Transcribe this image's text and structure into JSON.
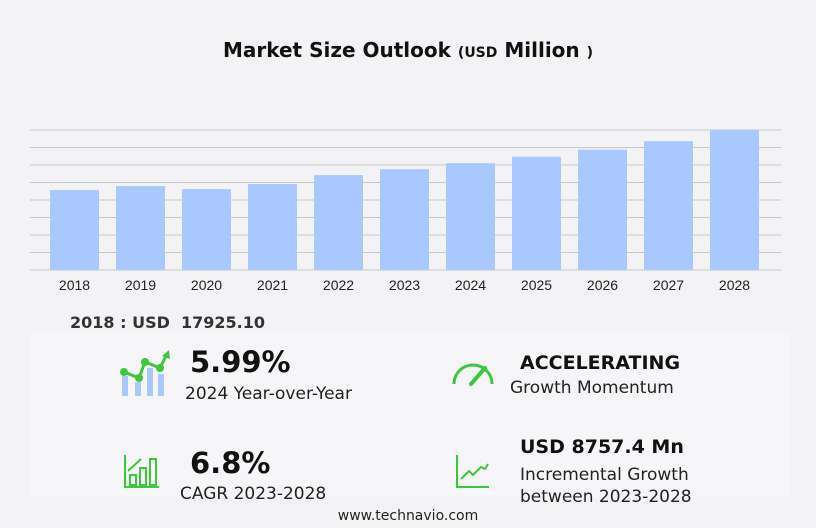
{
  "title": {
    "main": "Market Size Outlook",
    "open": "(",
    "unit": "USD",
    "unit2": "Million",
    "close": ")"
  },
  "chart_data": {
    "type": "bar",
    "categories": [
      "2018",
      "2019",
      "2020",
      "2021",
      "2022",
      "2023",
      "2024",
      "2025",
      "2026",
      "2027",
      "2028"
    ],
    "values": [
      17925.1,
      18820,
      18150,
      19270,
      21290,
      22610,
      23965,
      25400,
      27000,
      28900,
      31370
    ],
    "ylim": [
      0,
      31400
    ],
    "grid": true,
    "bar_color": "#a8c8ff"
  },
  "base_label": "2018 : USD  17925.10",
  "stats": {
    "yoy_value": "5.99%",
    "yoy_label": "2024 Year-over-Year",
    "momentum_value": "ACCELERATING",
    "momentum_label": "Growth Momentum",
    "cagr_value": "6.8%",
    "cagr_label": "CAGR 2023-2028",
    "incr_value": "USD 8757.4 Mn",
    "incr_label1": "Incremental Growth",
    "incr_label2": "between 2023-2028"
  },
  "icon_color": "#3cc83c",
  "footer": "www.technavio.com"
}
